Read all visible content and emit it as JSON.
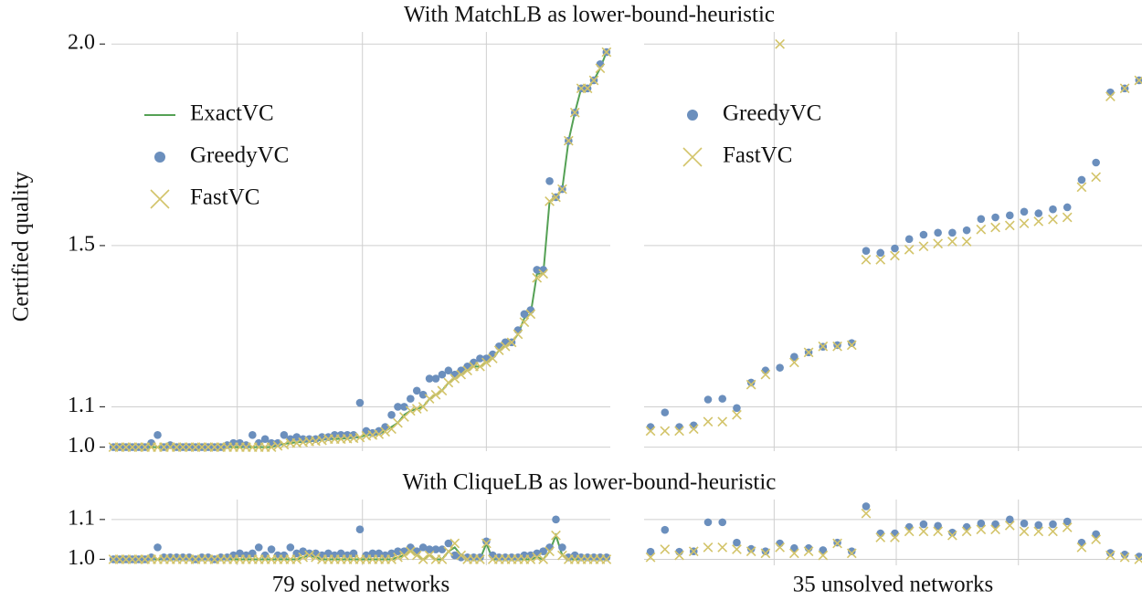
{
  "chart_data": [
    {
      "type": "line",
      "title": "With MatchLB as lower-bound-heuristic",
      "ylabel": "Certified quality",
      "xlim": [
        -0.3,
        78.6
      ],
      "xticks": [
        19.6,
        39.4,
        59.0
      ],
      "ylim": [
        0.99,
        2.03
      ],
      "yticks": [
        {
          "value": 1,
          "label": "1.0"
        },
        1.1,
        1.5,
        {
          "value": 2,
          "label": "2.0"
        }
      ],
      "grid": true,
      "legend": "upper left",
      "series": [
        {
          "name": "ExactVC",
          "marker": "line",
          "color": "#55a155",
          "values": [
            1,
            1,
            1,
            1,
            1,
            1,
            1,
            1,
            1,
            1,
            1,
            1,
            1,
            1,
            1,
            1,
            1,
            1,
            1,
            1,
            1,
            1,
            1,
            1,
            1,
            1,
            1.005,
            1.008,
            1.01,
            1.012,
            1.013,
            1.014,
            1.016,
            1.018,
            1.02,
            1.02,
            1.021,
            1.022,
            1.023,
            1.025,
            1.03,
            1.03,
            1.032,
            1.04,
            1.05,
            1.06,
            1.08,
            1.09,
            1.095,
            1.1,
            1.12,
            1.13,
            1.14,
            1.16,
            1.17,
            1.18,
            1.19,
            1.2,
            1.2,
            1.21,
            1.22,
            1.24,
            1.25,
            1.26,
            1.28,
            1.32,
            1.33,
            1.43,
            1.43,
            1.61,
            1.62,
            1.64,
            1.76,
            1.83,
            1.89,
            1.89,
            1.91,
            1.94,
            1.98
          ]
        },
        {
          "name": "GreedyVC",
          "marker": "o",
          "color": "#6b8fbd",
          "values": [
            1,
            1,
            1,
            1,
            1,
            1,
            1.01,
            1.03,
            1,
            1.005,
            1,
            1,
            1,
            1,
            1,
            1,
            1,
            1,
            1.005,
            1.01,
            1.01,
            1.005,
            1.03,
            1.01,
            1.02,
            1.01,
            1.01,
            1.03,
            1.02,
            1.025,
            1.02,
            1.02,
            1.02,
            1.025,
            1.025,
            1.03,
            1.03,
            1.03,
            1.03,
            1.11,
            1.04,
            1.035,
            1.04,
            1.05,
            1.08,
            1.1,
            1.1,
            1.12,
            1.14,
            1.13,
            1.17,
            1.17,
            1.18,
            1.19,
            1.18,
            1.19,
            1.2,
            1.21,
            1.22,
            1.22,
            1.23,
            1.25,
            1.26,
            1.26,
            1.29,
            1.33,
            1.34,
            1.44,
            1.44,
            1.66,
            1.62,
            1.64,
            1.76,
            1.83,
            1.89,
            1.89,
            1.91,
            1.95,
            1.98
          ]
        },
        {
          "name": "FastVC",
          "marker": "x",
          "color": "#d3c46a",
          "values": [
            1,
            1,
            1,
            1,
            1,
            1,
            1,
            1,
            1,
            1,
            1,
            1,
            1,
            1,
            1,
            1,
            1,
            1,
            1,
            1,
            1,
            1,
            1,
            1,
            1,
            1,
            1.003,
            1.006,
            1.01,
            1.01,
            1.012,
            1.014,
            1.015,
            1.017,
            1.02,
            1.02,
            1.02,
            1.021,
            1.022,
            1.024,
            1.028,
            1.03,
            1.032,
            1.038,
            1.045,
            1.06,
            1.075,
            1.09,
            1.095,
            1.1,
            1.12,
            1.13,
            1.14,
            1.16,
            1.17,
            1.18,
            1.19,
            1.2,
            1.2,
            1.21,
            1.22,
            1.24,
            1.25,
            1.26,
            1.28,
            1.31,
            1.33,
            1.42,
            1.43,
            1.61,
            1.62,
            1.64,
            1.76,
            1.83,
            1.89,
            1.89,
            1.91,
            1.94,
            1.98
          ]
        }
      ]
    },
    {
      "type": "scatter",
      "sharey": true,
      "xlim": [
        -0.45,
        34.2
      ],
      "xticks": [
        8.6,
        17.1,
        25.6
      ],
      "grid": true,
      "legend": "upper left",
      "series": [
        {
          "name": "GreedyVC",
          "marker": "o",
          "color": "#6b8fbd",
          "values": [
            1.05,
            1.086,
            1.05,
            1.054,
            1.118,
            1.12,
            1.097,
            1.16,
            1.19,
            1.197,
            1.224,
            1.235,
            1.249,
            1.253,
            1.258,
            1.487,
            1.482,
            1.493,
            1.516,
            1.527,
            1.532,
            1.532,
            1.538,
            1.566,
            1.57,
            1.575,
            1.584,
            1.58,
            1.59,
            1.595,
            1.663,
            1.706,
            1.88,
            1.89,
            1.91
          ]
        },
        {
          "name": "FastVC",
          "marker": "x",
          "color": "#d3c46a",
          "values": [
            1.04,
            1.04,
            1.04,
            1.045,
            1.063,
            1.063,
            1.08,
            1.155,
            1.18,
            2.0,
            1.21,
            1.235,
            1.25,
            1.25,
            1.253,
            1.465,
            1.465,
            1.475,
            1.49,
            1.498,
            1.505,
            1.51,
            1.51,
            1.54,
            1.545,
            1.55,
            1.555,
            1.56,
            1.565,
            1.57,
            1.645,
            1.67,
            1.87,
            1.89,
            1.91
          ]
        }
      ]
    },
    {
      "type": "line",
      "title": "With CliqueLB as lower-bound-heuristic",
      "xlabel": "79 solved networks",
      "xlim": [
        -0.3,
        78.6
      ],
      "xticks": [
        19.6,
        39.4,
        59.0
      ],
      "ylim": [
        0.985,
        1.15
      ],
      "yticks": [
        {
          "value": 1,
          "label": "1.0"
        },
        1.1
      ],
      "grid": true,
      "series": [
        {
          "name": "ExactVC",
          "marker": "line",
          "color": "#55a155",
          "values": [
            1,
            1,
            1,
            1,
            1,
            1,
            1,
            1,
            1,
            1,
            1,
            1,
            1,
            1,
            1,
            1,
            1,
            1,
            1,
            1,
            1,
            1,
            1,
            1,
            1,
            1,
            1,
            1,
            1,
            1,
            1.005,
            1.01,
            1.005,
            1,
            1,
            1,
            1,
            1,
            1,
            1,
            1,
            1,
            1,
            1,
            1,
            1.005,
            1.01,
            1.02,
            1.01,
            1,
            1.01,
            1,
            1,
            1.02,
            1.03,
            1.01,
            1,
            1,
            1,
            1.04,
            1,
            1,
            1,
            1,
            1,
            1,
            1,
            1.005,
            1,
            1.02,
            1.06,
            1.01,
            1,
            1,
            1,
            1,
            1,
            1,
            1
          ]
        },
        {
          "name": "GreedyVC",
          "marker": "o",
          "color": "#6b8fbd",
          "values": [
            1,
            1,
            1,
            1,
            1,
            1,
            1.005,
            1.03,
            1.005,
            1.005,
            1.005,
            1.005,
            1.005,
            1,
            1.005,
            1.005,
            1,
            1.005,
            1.005,
            1.01,
            1.015,
            1.01,
            1.015,
            1.03,
            1.01,
            1.025,
            1.01,
            1.01,
            1.03,
            1.015,
            1.02,
            1.015,
            1.015,
            1.01,
            1.015,
            1.01,
            1.015,
            1.01,
            1.015,
            1.075,
            1.01,
            1.015,
            1.015,
            1.01,
            1.015,
            1.02,
            1.02,
            1.03,
            1.02,
            1.03,
            1.025,
            1.025,
            1.025,
            1.04,
            1.01,
            1.005,
            1.005,
            1.005,
            1.005,
            1.045,
            1.01,
            1.005,
            1.005,
            1.005,
            1.005,
            1.01,
            1.01,
            1.015,
            1.02,
            1.03,
            1.1,
            1.03,
            1.005,
            1.01,
            1.005,
            1.005,
            1.005,
            1.005,
            1.005
          ]
        },
        {
          "name": "FastVC",
          "marker": "x",
          "color": "#d3c46a",
          "values": [
            1,
            1,
            1,
            1,
            1,
            1,
            1,
            1,
            1,
            1,
            1,
            1,
            1,
            1,
            1,
            1,
            1,
            1,
            1,
            1,
            1,
            1,
            1,
            1,
            1,
            1,
            1,
            1,
            1,
            1,
            1.005,
            1.01,
            1.005,
            1,
            1,
            1,
            1,
            1,
            1,
            1,
            1,
            1,
            1,
            1,
            1,
            1.005,
            1.01,
            1.02,
            1.01,
            1,
            1.01,
            1,
            1,
            1.02,
            1.04,
            1.01,
            1,
            1,
            1,
            1.04,
            1,
            1,
            1,
            1,
            1,
            1,
            1,
            1.005,
            1,
            1.02,
            1.06,
            1.01,
            1,
            1,
            1,
            1,
            1,
            1,
            1
          ]
        }
      ]
    },
    {
      "type": "scatter",
      "sharey": true,
      "xlabel": "35 unsolved networks",
      "xlim": [
        -0.45,
        34.2
      ],
      "xticks": [
        8.6,
        17.1,
        25.6
      ],
      "grid": true,
      "series": [
        {
          "name": "GreedyVC",
          "marker": "o",
          "color": "#6b8fbd",
          "values": [
            1.019,
            1.074,
            1.019,
            1.02,
            1.093,
            1.093,
            1.042,
            1.026,
            1.02,
            1.04,
            1.028,
            1.028,
            1.023,
            1.042,
            1.02,
            1.133,
            1.065,
            1.065,
            1.081,
            1.088,
            1.084,
            1.067,
            1.081,
            1.09,
            1.088,
            1.1,
            1.09,
            1.086,
            1.088,
            1.095,
            1.042,
            1.063,
            1.016,
            1.012,
            1.007
          ]
        },
        {
          "name": "FastVC",
          "marker": "x",
          "color": "#d3c46a",
          "values": [
            1.005,
            1.025,
            1.01,
            1.02,
            1.03,
            1.03,
            1.025,
            1.02,
            1.015,
            1.03,
            1.015,
            1.02,
            1.01,
            1.04,
            1.015,
            1.115,
            1.055,
            1.055,
            1.07,
            1.07,
            1.07,
            1.06,
            1.07,
            1.075,
            1.075,
            1.085,
            1.07,
            1.07,
            1.07,
            1.08,
            1.03,
            1.05,
            1.01,
            1.005,
            1.0
          ]
        }
      ]
    }
  ]
}
